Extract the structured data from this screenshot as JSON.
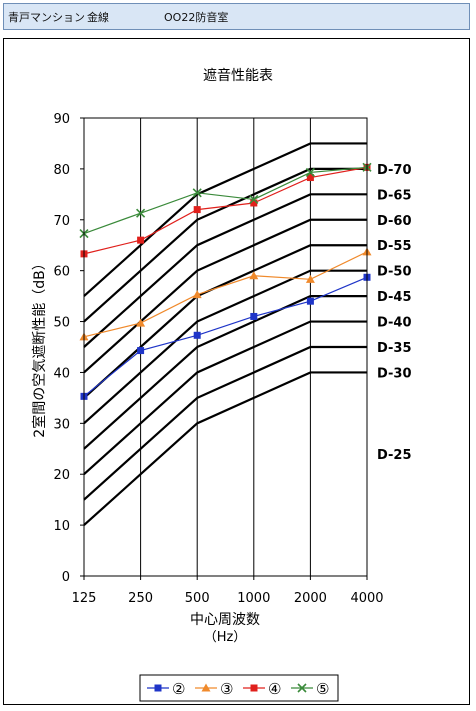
{
  "header": {
    "building": "青戸マンション",
    "line": "金線",
    "room": "OO22防音室"
  },
  "chart_data": {
    "type": "line",
    "title": "遮音性能表",
    "xlabel": "中心周波数",
    "xunit": "（Hz）",
    "ylabel": "2室間の空気遮断性能（dB）",
    "categories": [
      "125",
      "250",
      "500",
      "1000",
      "2000",
      "4000"
    ],
    "ylim": [
      0,
      90
    ],
    "yticks": [
      0,
      10,
      20,
      30,
      40,
      50,
      60,
      70,
      80,
      90
    ],
    "grid": "vertical",
    "legend_position": "bottom",
    "d_curves": [
      {
        "label": "D-70",
        "values": [
          55,
          65,
          75,
          80,
          85,
          85
        ]
      },
      {
        "label": "D-65",
        "values": [
          50,
          60,
          70,
          75,
          80,
          80
        ]
      },
      {
        "label": "D-60",
        "values": [
          45,
          55,
          65,
          70,
          75,
          75
        ]
      },
      {
        "label": "D-55",
        "values": [
          40,
          50,
          60,
          65,
          70,
          70
        ]
      },
      {
        "label": "D-50",
        "values": [
          35,
          45,
          55,
          60,
          65,
          65
        ]
      },
      {
        "label": "D-45",
        "values": [
          30,
          40,
          50,
          55,
          60,
          60
        ]
      },
      {
        "label": "D-40",
        "values": [
          25,
          35,
          45,
          50,
          55,
          55
        ]
      },
      {
        "label": "D-35",
        "values": [
          20,
          30,
          40,
          45,
          50,
          50
        ]
      },
      {
        "label": "D-30",
        "values": [
          15,
          25,
          35,
          40,
          45,
          45
        ]
      },
      {
        "label": "D-25",
        "values": [
          10,
          20,
          30,
          35,
          40,
          40
        ]
      }
    ],
    "d_label_values": [
      80,
      75,
      70,
      65,
      60,
      55,
      50,
      45,
      40,
      24
    ],
    "series": [
      {
        "name": "②",
        "color": "#1f35c8",
        "marker": "square",
        "values": [
          35.3,
          44.3,
          47.3,
          51.0,
          54.0,
          58.7
        ]
      },
      {
        "name": "③",
        "color": "#f08a2c",
        "marker": "triangle",
        "values": [
          47.0,
          49.7,
          55.3,
          59.0,
          58.3,
          63.7
        ]
      },
      {
        "name": "④",
        "color": "#e0201c",
        "marker": "square",
        "values": [
          63.3,
          66.0,
          72.0,
          73.3,
          78.3,
          80.3
        ]
      },
      {
        "name": "⑤",
        "color": "#3a8a3a",
        "marker": "x",
        "values": [
          67.3,
          71.3,
          75.3,
          74.0,
          79.3,
          80.3
        ]
      }
    ]
  }
}
